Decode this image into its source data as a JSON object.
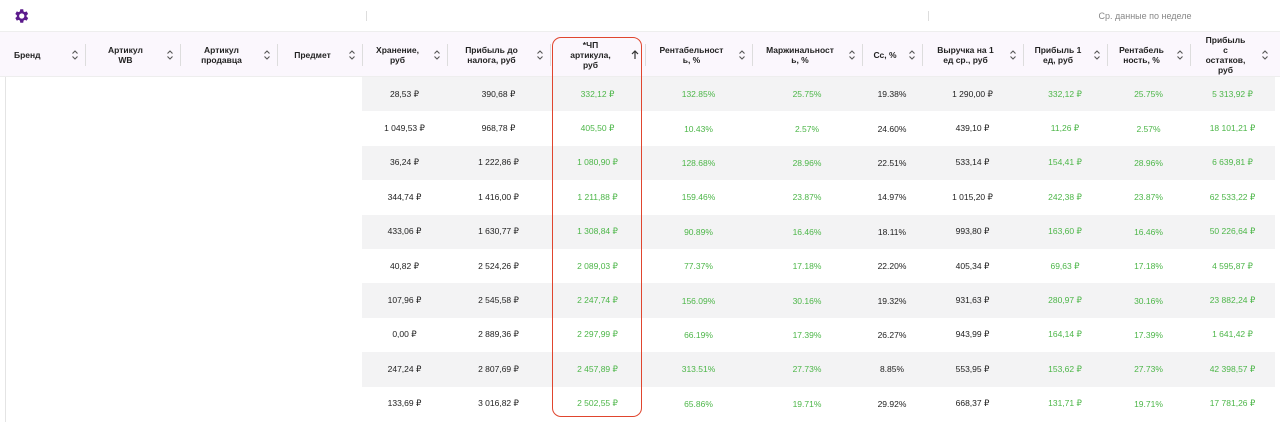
{
  "toolbar": {
    "group_label": "Ср. данные по неделе"
  },
  "table": {
    "columns": [
      "Бренд",
      "Артикул\nWB",
      "Артикул\nпродавца",
      "Предмет",
      "Хранение,\nруб",
      "Прибыль до\nналога, руб",
      "*ЧП\nартикула,\nруб",
      "Рентабельност\nь, %",
      "Маржинальност\nь, %",
      "Сс, %",
      "Выручка на 1\nед ср., руб",
      "Прибыль 1\nед, руб",
      "Рентабель\nность, %",
      "Прибыль\nс\nостатков,\nруб"
    ],
    "rows": [
      [
        "28,53 ₽",
        "390,68 ₽",
        "332,12 ₽",
        "132.85%",
        "25.75%",
        "19.38%",
        "1 290,00 ₽",
        "332,12 ₽",
        "25.75%",
        "5 313,92 ₽"
      ],
      [
        "1 049,53 ₽",
        "968,78 ₽",
        "405,50 ₽",
        "10.43%",
        "2.57%",
        "24.60%",
        "439,10 ₽",
        "11,26 ₽",
        "2.57%",
        "18 101,21 ₽"
      ],
      [
        "36,24 ₽",
        "1 222,86 ₽",
        "1 080,90 ₽",
        "128.68%",
        "28.96%",
        "22.51%",
        "533,14 ₽",
        "154,41 ₽",
        "28.96%",
        "6 639,81 ₽"
      ],
      [
        "344,74 ₽",
        "1 416,00 ₽",
        "1 211,88 ₽",
        "159.46%",
        "23.87%",
        "14.97%",
        "1 015,20 ₽",
        "242,38 ₽",
        "23.87%",
        "62 533,22 ₽"
      ],
      [
        "433,06 ₽",
        "1 630,77 ₽",
        "1 308,84 ₽",
        "90.89%",
        "16.46%",
        "18.11%",
        "993,80 ₽",
        "163,60 ₽",
        "16.46%",
        "50 226,64 ₽"
      ],
      [
        "40,82 ₽",
        "2 524,26 ₽",
        "2 089,03 ₽",
        "77.37%",
        "17.18%",
        "22.20%",
        "405,34 ₽",
        "69,63 ₽",
        "17.18%",
        "4 595,87 ₽"
      ],
      [
        "107,96 ₽",
        "2 545,58 ₽",
        "2 247,74 ₽",
        "156.09%",
        "30.16%",
        "19.32%",
        "931,63 ₽",
        "280,97 ₽",
        "30.16%",
        "23 882,24 ₽"
      ],
      [
        "0,00 ₽",
        "2 889,36 ₽",
        "2 297,99 ₽",
        "66.19%",
        "17.39%",
        "26.27%",
        "943,99 ₽",
        "164,14 ₽",
        "17.39%",
        "1 641,42 ₽"
      ],
      [
        "247,24 ₽",
        "2 807,69 ₽",
        "2 457,89 ₽",
        "313.51%",
        "27.73%",
        "8.85%",
        "553,95 ₽",
        "153,62 ₽",
        "27.73%",
        "42 398,57 ₽"
      ],
      [
        "133,69 ₽",
        "3 016,82 ₽",
        "2 502,55 ₽",
        "65.86%",
        "19.71%",
        "29.92%",
        "668,37 ₽",
        "131,71 ₽",
        "19.71%",
        "17 781,26 ₽"
      ]
    ]
  }
}
